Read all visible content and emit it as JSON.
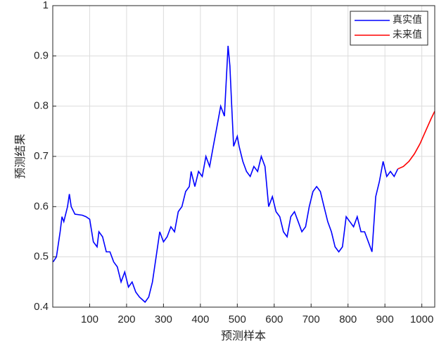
{
  "chart_data": {
    "type": "line",
    "xlabel": "预测样本",
    "ylabel": "预测结果",
    "xlim": [
      0,
      1035
    ],
    "ylim": [
      0.4,
      1
    ],
    "xticks": [
      100,
      200,
      300,
      400,
      500,
      600,
      700,
      800,
      900,
      1000
    ],
    "yticks": [
      0.4,
      0.5,
      0.6,
      0.7,
      0.8,
      0.9,
      1
    ],
    "grid": true,
    "legend": "top-right",
    "series": [
      {
        "name": "真实值",
        "color": "#0000ff",
        "x": [
          1,
          10,
          20,
          25,
          30,
          40,
          45,
          50,
          60,
          80,
          90,
          100,
          110,
          120,
          125,
          135,
          145,
          155,
          165,
          175,
          185,
          195,
          205,
          215,
          225,
          235,
          250,
          260,
          270,
          280,
          290,
          300,
          310,
          320,
          330,
          340,
          350,
          360,
          370,
          375,
          385,
          395,
          405,
          415,
          425,
          435,
          445,
          455,
          465,
          475,
          480,
          485,
          490,
          500,
          505,
          515,
          525,
          535,
          545,
          555,
          565,
          575,
          585,
          595,
          605,
          615,
          625,
          635,
          645,
          655,
          665,
          675,
          685,
          695,
          705,
          715,
          725,
          735,
          745,
          755,
          765,
          775,
          785,
          795,
          805,
          815,
          825,
          835,
          845,
          855,
          865,
          875,
          885,
          895,
          905,
          915,
          925,
          935
        ],
        "values": [
          0.49,
          0.5,
          0.55,
          0.58,
          0.57,
          0.6,
          0.625,
          0.6,
          0.585,
          0.583,
          0.58,
          0.575,
          0.53,
          0.52,
          0.55,
          0.54,
          0.51,
          0.51,
          0.49,
          0.48,
          0.45,
          0.47,
          0.44,
          0.45,
          0.43,
          0.42,
          0.41,
          0.42,
          0.45,
          0.5,
          0.55,
          0.53,
          0.54,
          0.56,
          0.55,
          0.59,
          0.6,
          0.63,
          0.64,
          0.67,
          0.64,
          0.67,
          0.66,
          0.7,
          0.68,
          0.72,
          0.76,
          0.8,
          0.78,
          0.92,
          0.88,
          0.8,
          0.72,
          0.74,
          0.72,
          0.69,
          0.67,
          0.66,
          0.68,
          0.67,
          0.7,
          0.68,
          0.6,
          0.62,
          0.59,
          0.58,
          0.55,
          0.54,
          0.58,
          0.59,
          0.57,
          0.55,
          0.56,
          0.6,
          0.63,
          0.64,
          0.63,
          0.6,
          0.57,
          0.55,
          0.52,
          0.51,
          0.52,
          0.58,
          0.57,
          0.56,
          0.58,
          0.55,
          0.55,
          0.53,
          0.51,
          0.62,
          0.65,
          0.69,
          0.66,
          0.67,
          0.66,
          0.675
        ]
      },
      {
        "name": "未来值",
        "color": "#ff0000",
        "x": [
          935,
          950,
          965,
          980,
          995,
          1010,
          1025,
          1035
        ],
        "values": [
          0.675,
          0.68,
          0.69,
          0.705,
          0.725,
          0.75,
          0.775,
          0.79
        ]
      }
    ]
  }
}
